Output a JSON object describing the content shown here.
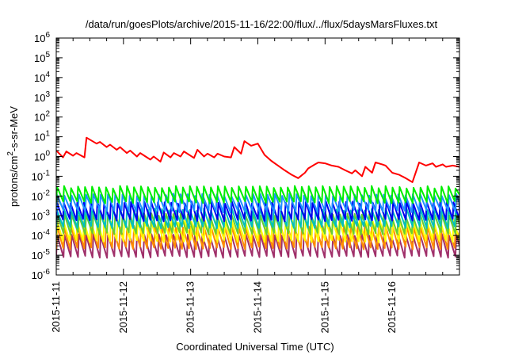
{
  "chart_data": {
    "type": "line",
    "title": "/data/run/goesPlots/archive/2015-11-16/22:00/flux/../flux/5daysMarsFluxes.txt",
    "xlabel": "Coordinated Universal Time (UTC)",
    "ylabel_parts": [
      "protons/cm",
      "2",
      "-s-sr-MeV"
    ],
    "x_unit": "days since 2015-11-11 00:00 UTC",
    "xlim": [
      0,
      6.0
    ],
    "x_ticks": [
      {
        "x": 0,
        "label": "2015-11-11"
      },
      {
        "x": 1,
        "label": "2015-11-12"
      },
      {
        "x": 2,
        "label": "2015-11-13"
      },
      {
        "x": 3,
        "label": "2015-11-14"
      },
      {
        "x": 4,
        "label": "2015-11-15"
      },
      {
        "x": 5,
        "label": "2015-11-16"
      }
    ],
    "y_scale": "log",
    "ylim": [
      1e-06,
      1000000.0
    ],
    "y_ticks": [
      {
        "exp": "-6"
      },
      {
        "exp": "-5"
      },
      {
        "exp": "-4"
      },
      {
        "exp": "-3"
      },
      {
        "exp": "-2"
      },
      {
        "exp": "-1"
      },
      {
        "exp": "0"
      },
      {
        "exp": "1"
      },
      {
        "exp": "2"
      },
      {
        "exp": "3"
      },
      {
        "exp": "4"
      },
      {
        "exp": "5"
      },
      {
        "exp": "6"
      }
    ],
    "y_tick_base": "10",
    "grid": false,
    "series": [
      {
        "color": "#ff0000",
        "x": [
          0,
          0.1,
          0.15,
          0.25,
          0.3,
          0.42,
          0.45,
          0.6,
          0.65,
          0.75,
          0.8,
          0.9,
          0.95,
          1.05,
          1.1,
          1.2,
          1.25,
          1.4,
          1.45,
          1.55,
          1.6,
          1.7,
          1.75,
          1.85,
          1.9,
          2.05,
          2.1,
          2.2,
          2.25,
          2.35,
          2.4,
          2.5,
          2.6,
          2.65,
          2.75,
          2.8,
          2.9,
          3.0,
          3.1,
          3.2,
          3.3,
          3.4,
          3.5,
          3.6,
          3.7,
          3.75,
          3.85,
          3.9,
          4.0,
          4.1,
          4.2,
          4.3,
          4.4,
          4.45,
          4.55,
          4.6,
          4.7,
          4.75,
          4.85,
          4.9,
          5.0,
          5.1,
          5.2,
          5.3,
          5.4,
          5.5,
          5.6,
          5.65,
          5.75,
          5.8,
          5.9,
          6.0
        ],
        "y": [
          2.0,
          0.9,
          1.8,
          1.1,
          1.5,
          0.9,
          9.0,
          4.5,
          5.5,
          3.0,
          4.0,
          2.2,
          3.0,
          1.5,
          2.0,
          1.0,
          1.5,
          0.7,
          1.0,
          0.55,
          1.6,
          0.9,
          1.5,
          1.0,
          1.8,
          0.85,
          2.2,
          1.0,
          1.4,
          0.9,
          1.4,
          1.0,
          0.9,
          3.0,
          1.4,
          6.0,
          3.5,
          4.5,
          1.2,
          0.6,
          0.35,
          0.2,
          0.12,
          0.08,
          0.15,
          0.25,
          0.4,
          0.5,
          0.45,
          0.35,
          0.3,
          0.2,
          0.14,
          0.2,
          0.1,
          0.3,
          0.15,
          0.5,
          0.4,
          0.35,
          0.15,
          0.12,
          0.08,
          0.05,
          0.5,
          0.35,
          0.45,
          0.3,
          0.4,
          0.3,
          0.35,
          0.3
        ]
      },
      {
        "color": "#00ee00",
        "base": 0.0118,
        "amp": 2.4,
        "seed": 1
      },
      {
        "color": "#1e90ff",
        "base": 0.0045,
        "amp": 2.6,
        "seed": 2
      },
      {
        "color": "#0000ee",
        "base": 0.0017,
        "amp": 2.8,
        "seed": 3
      },
      {
        "color": "#00bfbf",
        "base": 0.00075,
        "amp": 2.8,
        "seed": 4
      },
      {
        "color": "#66cc33",
        "base": 0.00038,
        "amp": 3.0,
        "seed": 5
      },
      {
        "color": "#ffff00",
        "base": 0.00017,
        "amp": 3.2,
        "seed": 6
      },
      {
        "color": "#ff8c00",
        "base": 8e-05,
        "amp": 3.4,
        "seed": 7
      },
      {
        "color": "#a0306a",
        "base": 3e-05,
        "amp": 3.6,
        "seed": 8
      }
    ]
  }
}
